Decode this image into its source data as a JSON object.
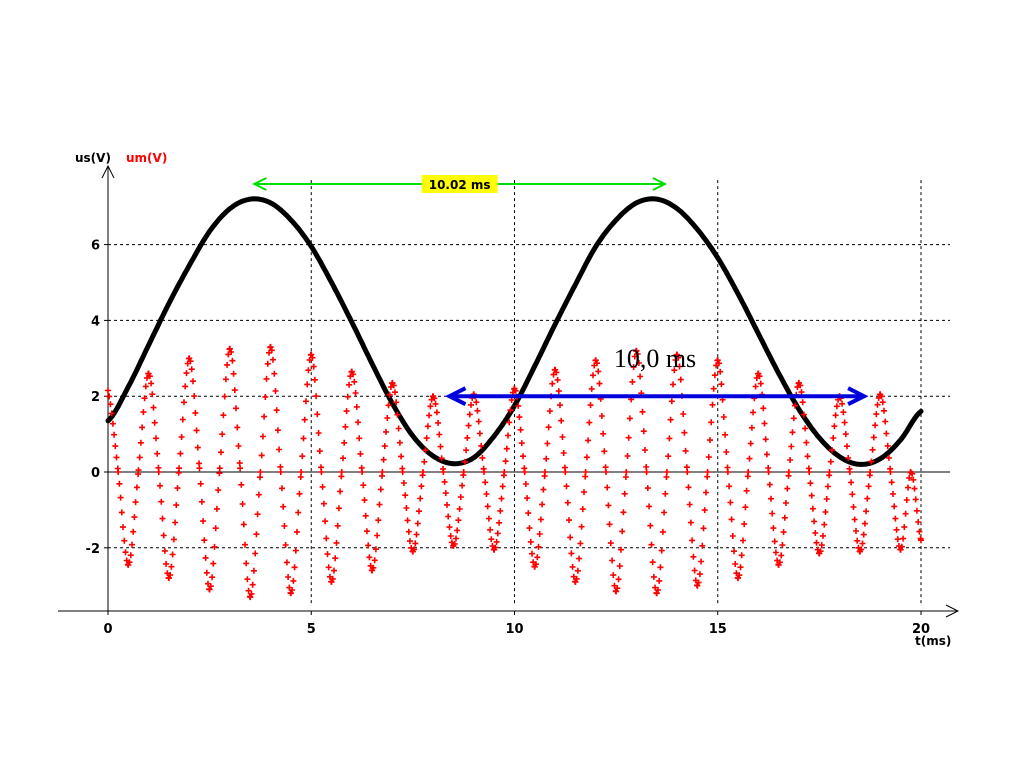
{
  "chart_data": {
    "type": "line",
    "y_axis_labels": [
      {
        "text": "us(V)",
        "color": "#000000"
      },
      {
        "text": "um(V)",
        "color": "#ff0000"
      }
    ],
    "xlabel": "t(ms)",
    "xlim": [
      0,
      20
    ],
    "ylim": [
      -3.5,
      7.7
    ],
    "x_ticks": [
      0,
      5,
      10,
      15,
      20
    ],
    "y_ticks": [
      -2,
      0,
      2,
      4,
      6
    ],
    "grid": true,
    "series": [
      {
        "name": "us(V)",
        "color": "#000000",
        "style": "solid",
        "x": [
          0,
          0.5,
          1,
          1.5,
          2,
          2.5,
          3,
          3.5,
          4,
          4.5,
          5,
          5.5,
          6,
          6.5,
          7,
          7.5,
          8,
          8.5,
          9,
          9.5,
          10,
          10.5,
          11,
          11.5,
          12,
          12.5,
          13,
          13.5,
          14,
          14.5,
          15,
          15.5,
          16,
          16.5,
          17,
          17.5,
          18,
          18.5,
          19,
          19.5,
          20
        ],
        "y": [
          1.35,
          2.25,
          3.35,
          4.45,
          5.45,
          6.35,
          6.95,
          7.2,
          7.1,
          6.65,
          5.95,
          5.0,
          3.95,
          2.85,
          1.8,
          0.95,
          0.42,
          0.22,
          0.38,
          0.95,
          1.75,
          2.8,
          3.9,
          4.95,
          5.95,
          6.65,
          7.1,
          7.2,
          6.95,
          6.4,
          5.65,
          4.7,
          3.65,
          2.6,
          1.65,
          0.9,
          0.4,
          0.2,
          0.35,
          0.85,
          1.6
        ]
      },
      {
        "name": "um(V)",
        "color": "#ff0000",
        "style": "dotted-markers",
        "x": [
          0,
          0.25,
          0.5,
          0.75,
          1.0,
          1.25,
          1.5,
          1.75,
          2.0,
          2.25,
          2.5,
          2.75,
          3.0,
          3.25,
          3.5,
          3.75,
          4.0,
          4.25,
          4.5,
          4.75,
          5.0,
          5.25,
          5.5,
          5.75,
          6.0,
          6.25,
          6.5,
          6.75,
          7.0,
          7.25,
          7.5,
          7.75,
          8.0,
          8.25,
          8.5,
          8.75,
          9.0,
          9.25,
          9.5,
          9.75,
          10.0,
          10.25,
          10.5,
          10.75,
          11.0,
          11.25,
          11.5,
          11.75,
          12.0,
          12.25,
          12.5,
          12.75,
          13.0,
          13.25,
          13.5,
          13.75,
          14.0,
          14.25,
          14.5,
          14.75,
          15.0,
          15.25,
          15.5,
          15.75,
          16.0,
          16.25,
          16.5,
          16.75,
          17.0,
          17.25,
          17.5,
          17.75,
          18.0,
          18.25,
          18.5,
          18.75,
          19.0,
          19.25,
          19.5,
          19.75,
          20.0
        ],
        "y": [
          2.15,
          0.0,
          -2.45,
          0.05,
          2.6,
          0.0,
          -2.8,
          0.1,
          3.0,
          0.1,
          -3.1,
          0.1,
          3.25,
          0.1,
          -3.3,
          0.0,
          3.3,
          0.0,
          -3.2,
          0.0,
          3.1,
          0.0,
          -2.9,
          0.0,
          2.65,
          0.0,
          -2.6,
          0.0,
          2.35,
          0.0,
          -2.1,
          0.0,
          2.0,
          0.0,
          -1.95,
          0.0,
          2.05,
          0.0,
          -2.05,
          0.0,
          2.2,
          0.0,
          -2.5,
          0.0,
          2.7,
          0.0,
          -2.9,
          0.0,
          2.95,
          0.0,
          -3.15,
          0.0,
          3.2,
          0.0,
          -3.2,
          0.0,
          3.1,
          0.0,
          -3.0,
          0.0,
          2.95,
          0.0,
          -2.8,
          0.0,
          2.6,
          0.0,
          -2.45,
          0.0,
          2.35,
          0.0,
          -2.15,
          0.0,
          2.0,
          0.0,
          -2.1,
          0.0,
          2.05,
          0.0,
          -2.05,
          0.0,
          -1.8
        ]
      }
    ],
    "annotations": [
      {
        "type": "double-arrow",
        "label": "10.02 ms",
        "x_from": 3.6,
        "x_to": 13.7,
        "y": 7.6,
        "color": "#00dd00",
        "label_background": "#ffff00"
      },
      {
        "type": "double-arrow",
        "label": "10,0 ms",
        "x_from": 8.4,
        "x_to": 18.6,
        "y": 2.0,
        "color": "#0000dd"
      }
    ]
  }
}
